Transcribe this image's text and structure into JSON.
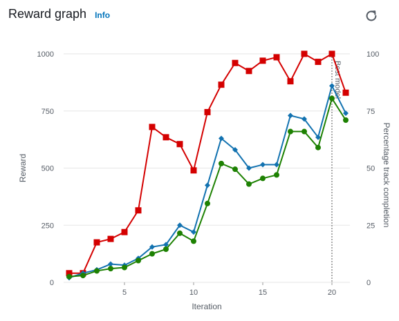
{
  "header": {
    "title": "Reward graph",
    "info_label": "Info"
  },
  "icons": {
    "refresh": "refresh-icon"
  },
  "colors": {
    "reward": "#d40000",
    "average_reward": "#1272b0",
    "completion": "#1d8102",
    "grid": "#e6e6e6",
    "marker_line": "#555555"
  },
  "chart_data": {
    "type": "line",
    "xlabel": "Iteration",
    "ylabel": "Reward",
    "y2label": "Percentage track completion",
    "xlim": [
      0.6,
      21.3
    ],
    "ylim": [
      0,
      1000
    ],
    "y2lim": [
      0,
      100
    ],
    "x_ticks": [
      5,
      10,
      15,
      20
    ],
    "y_ticks": [
      0,
      250,
      500,
      750,
      1000
    ],
    "y2_ticks": [
      0,
      25,
      50,
      75,
      100
    ],
    "x": [
      1,
      2,
      3,
      4,
      5,
      6,
      7,
      8,
      9,
      10,
      11,
      12,
      13,
      14,
      15,
      16,
      17,
      18,
      19,
      20,
      21
    ],
    "series": [
      {
        "key": "reward",
        "axis": "left",
        "marker": "square",
        "values": [
          40,
          40,
          175,
          190,
          220,
          315,
          680,
          635,
          605,
          490,
          745,
          865,
          960,
          925,
          970,
          985,
          880,
          1000,
          965,
          1000,
          830
        ]
      },
      {
        "key": "average_reward",
        "axis": "right",
        "marker": "diamond",
        "values": [
          2,
          4,
          5.5,
          8,
          7.5,
          10.5,
          15.5,
          16.5,
          25,
          22,
          42.5,
          63,
          58,
          50,
          51.5,
          51.5,
          73,
          71.5,
          63.5,
          86,
          74
        ]
      },
      {
        "key": "completion",
        "axis": "right",
        "marker": "circle",
        "values": [
          2.5,
          3,
          5,
          6,
          6.5,
          9.5,
          12.5,
          14.5,
          21.5,
          18,
          34.5,
          52,
          49.5,
          43,
          45.5,
          47,
          66,
          66,
          59,
          80.5,
          71
        ]
      }
    ],
    "best_model": {
      "x": 20,
      "label": "Best model"
    }
  }
}
